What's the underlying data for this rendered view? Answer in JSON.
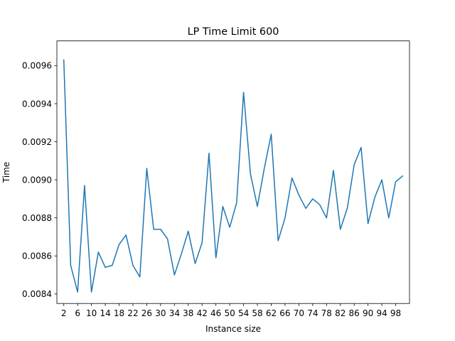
{
  "chart_data": {
    "type": "line",
    "title": "LP Time Limit 600",
    "xlabel": "Instance size",
    "ylabel": "Time",
    "xlim": [
      0,
      102
    ],
    "ylim": [
      0.00835,
      0.00973
    ],
    "grid": false,
    "xticks": [
      2,
      6,
      10,
      14,
      18,
      22,
      26,
      30,
      34,
      38,
      42,
      46,
      50,
      54,
      58,
      62,
      66,
      70,
      74,
      78,
      82,
      86,
      90,
      94,
      98
    ],
    "yticks": [
      0.0084,
      0.0086,
      0.0088,
      0.009,
      0.0092,
      0.0094,
      0.0096
    ],
    "ytick_labels": [
      "0.0084",
      "0.0086",
      "0.0088",
      "0.0090",
      "0.0092",
      "0.0094",
      "0.0096"
    ],
    "line_color": "#1f77b4",
    "series": [
      {
        "x": [
          2,
          4,
          6,
          8,
          10,
          12,
          14,
          16,
          18,
          20,
          22,
          24,
          26,
          28,
          30,
          32,
          34,
          36,
          38,
          40,
          42,
          44,
          46,
          48,
          50,
          52,
          54,
          56,
          58,
          60,
          62,
          64,
          66,
          68,
          70,
          72,
          74,
          76,
          78,
          80,
          82,
          84,
          86,
          88,
          90,
          92,
          94,
          96,
          98,
          100
        ],
        "values": [
          0.00963,
          0.00855,
          0.00841,
          0.00897,
          0.00841,
          0.00862,
          0.00854,
          0.00855,
          0.00866,
          0.00871,
          0.00855,
          0.00849,
          0.00906,
          0.00874,
          0.00874,
          0.00869,
          0.0085,
          0.00861,
          0.00873,
          0.00856,
          0.00867,
          0.00914,
          0.00859,
          0.00886,
          0.00875,
          0.00888,
          0.00946,
          0.00903,
          0.00886,
          0.00906,
          0.00924,
          0.00868,
          0.0088,
          0.00901,
          0.00892,
          0.00885,
          0.0089,
          0.00887,
          0.0088,
          0.00905,
          0.00874,
          0.00885,
          0.00908,
          0.00917,
          0.00877,
          0.00891,
          0.009,
          0.0088,
          0.00899,
          0.00902
        ]
      }
    ]
  }
}
